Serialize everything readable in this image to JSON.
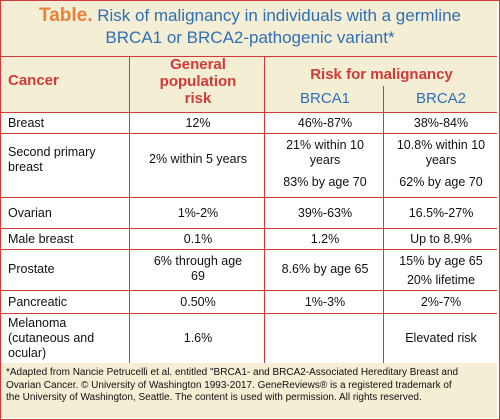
{
  "title": {
    "label": "Table.",
    "line1": " Risk of malignancy in individuals with a germline",
    "line2": "BRCA1 or BRCA2-pathogenic variant*"
  },
  "headers": {
    "cancer": "Cancer",
    "general_line1": "General",
    "general_line2": "population",
    "general_line3": "risk",
    "risk": "Risk for malignancy",
    "brca1": "BRCA1",
    "brca2": "BRCA2"
  },
  "rows": [
    {
      "cancer": [
        "Breast"
      ],
      "general": [
        "12%"
      ],
      "brca1": [
        "46%-87%"
      ],
      "brca2": [
        "38%-84%"
      ]
    },
    {
      "cancer": [
        "Second primary",
        "breast"
      ],
      "general": [
        "2% within 5 years"
      ],
      "brca1": [
        "21% within 10",
        "years",
        "83% by age 70"
      ],
      "brca2": [
        "10.8% within 10",
        "years",
        "62% by age 70"
      ]
    },
    {
      "cancer": [
        "Ovarian"
      ],
      "general": [
        "1%-2%"
      ],
      "brca1": [
        "39%-63%"
      ],
      "brca2": [
        "16.5%-27%"
      ]
    },
    {
      "cancer": [
        "Male breast"
      ],
      "general": [
        "0.1%"
      ],
      "brca1": [
        "1.2%"
      ],
      "brca2": [
        "Up to 8.9%"
      ]
    },
    {
      "cancer": [
        "Prostate"
      ],
      "general": [
        "6% through age",
        "69"
      ],
      "brca1": [
        "8.6% by age 65"
      ],
      "brca2": [
        "15% by age 65",
        "20% lifetime"
      ]
    },
    {
      "cancer": [
        "Pancreatic"
      ],
      "general": [
        "0.50%"
      ],
      "brca1": [
        "1%-3%"
      ],
      "brca2": [
        "2%-7%"
      ]
    },
    {
      "cancer": [
        "Melanoma",
        "(cutaneous and",
        "ocular)"
      ],
      "general": [
        "1.6%"
      ],
      "brca1": [],
      "brca2": [
        "Elevated risk"
      ]
    }
  ],
  "footnote": {
    "line1": "*Adapted from Nancie Petrucelli  et al. entitled \"BRCA1- and BRCA2-Associated Hereditary Breast and",
    "line2": "Ovarian Cancer. © University of Washington 1993-2017. GeneReviews® is a registered trademark of",
    "line3": "the University of Washington, Seattle. The content is used with permission. All rights reserved."
  },
  "colors": {
    "accent_red": "#d23a3a",
    "title_blue": "#2f6fb5",
    "label_orange": "#e8823a",
    "band": "#f4eed4"
  }
}
